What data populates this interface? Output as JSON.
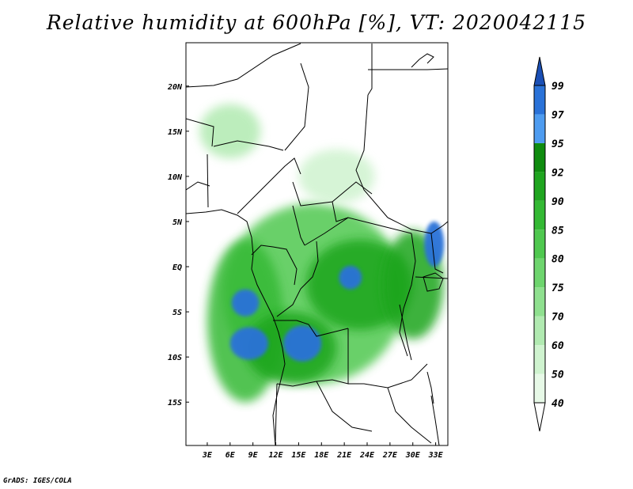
{
  "title": "Relative humidity at 600hPa [%], VT: 2020042115",
  "credit": "GrADS: IGES/COLA",
  "chart_data": {
    "type": "heatmap",
    "variable": "Relative humidity",
    "level": "600hPa",
    "units": "%",
    "valid_time": "2020042115",
    "x_axis": {
      "ticks": [
        3,
        6,
        9,
        12,
        15,
        18,
        21,
        24,
        27,
        30,
        33
      ],
      "labels": [
        "3E",
        "6E",
        "9E",
        "12E",
        "15E",
        "18E",
        "21E",
        "24E",
        "27E",
        "30E",
        "33E"
      ],
      "range": [
        0.2,
        34.6
      ]
    },
    "y_axis": {
      "ticks": [
        20,
        15,
        10,
        5,
        0,
        -5,
        -10,
        -15
      ],
      "labels": [
        "20N",
        "15N",
        "10N",
        "5N",
        "EQ",
        "5S",
        "10S",
        "15S"
      ],
      "range": [
        -19.8,
        24.8
      ]
    },
    "colorbar": {
      "levels": [
        "40",
        "50",
        "60",
        "70",
        "75",
        "80",
        "85",
        "90",
        "92",
        "95",
        "97",
        "99"
      ],
      "colors": [
        "#ffffff",
        "#e7f9e7",
        "#cff3cf",
        "#b1eab1",
        "#8fe08f",
        "#6ed56e",
        "#4fc84f",
        "#34b934",
        "#1fa51f",
        "#0f8c0f",
        "#4e9cf0",
        "#2a72d8",
        "#1a4fb5"
      ]
    },
    "fields": [
      {
        "name": "general-moist-band",
        "lon": 17.0,
        "lat": -3.0,
        "rx": 12.0,
        "ry": 10.0,
        "level": 80
      },
      {
        "name": "west-coast-moist",
        "lon": 8.0,
        "lat": -6.0,
        "rx": 5.0,
        "ry": 9.0,
        "level": 85
      },
      {
        "name": "congo-basin-core",
        "lon": 23.0,
        "lat": -2.0,
        "rx": 7.0,
        "ry": 5.0,
        "level": 90
      },
      {
        "name": "east-lakes-moist",
        "lon": 30.0,
        "lat": -2.0,
        "rx": 4.0,
        "ry": 6.0,
        "level": 90
      },
      {
        "name": "south-angola-moist",
        "lon": 14.0,
        "lat": -9.0,
        "rx": 6.0,
        "ry": 4.0,
        "level": 90
      },
      {
        "name": "north-sahel-patch",
        "lon": 6.0,
        "lat": 15.0,
        "rx": 4.0,
        "ry": 3.0,
        "level": 60
      },
      {
        "name": "chad-patch",
        "lon": 20.0,
        "lat": 10.0,
        "rx": 5.0,
        "ry": 3.0,
        "level": 50
      },
      {
        "name": "saturated-north-congo",
        "lon": 21.8,
        "lat": -1.2,
        "rx": 1.5,
        "ry": 1.3,
        "level": 97
      },
      {
        "name": "saturated-gabon",
        "lon": 8.0,
        "lat": -4.0,
        "rx": 1.8,
        "ry": 1.5,
        "level": 97
      },
      {
        "name": "saturated-angola-west",
        "lon": 8.5,
        "lat": -8.5,
        "rx": 2.5,
        "ry": 1.8,
        "level": 97
      },
      {
        "name": "saturated-angola-east",
        "lon": 15.5,
        "lat": -8.5,
        "rx": 2.5,
        "ry": 2.0,
        "level": 97
      },
      {
        "name": "saturated-uganda",
        "lon": 32.8,
        "lat": 2.5,
        "rx": 1.3,
        "ry": 2.5,
        "level": 97
      }
    ]
  },
  "icons": {
    "colorbar_arrow": "triangle-up-icon",
    "colorbar_tail": "triangle-down-icon"
  }
}
